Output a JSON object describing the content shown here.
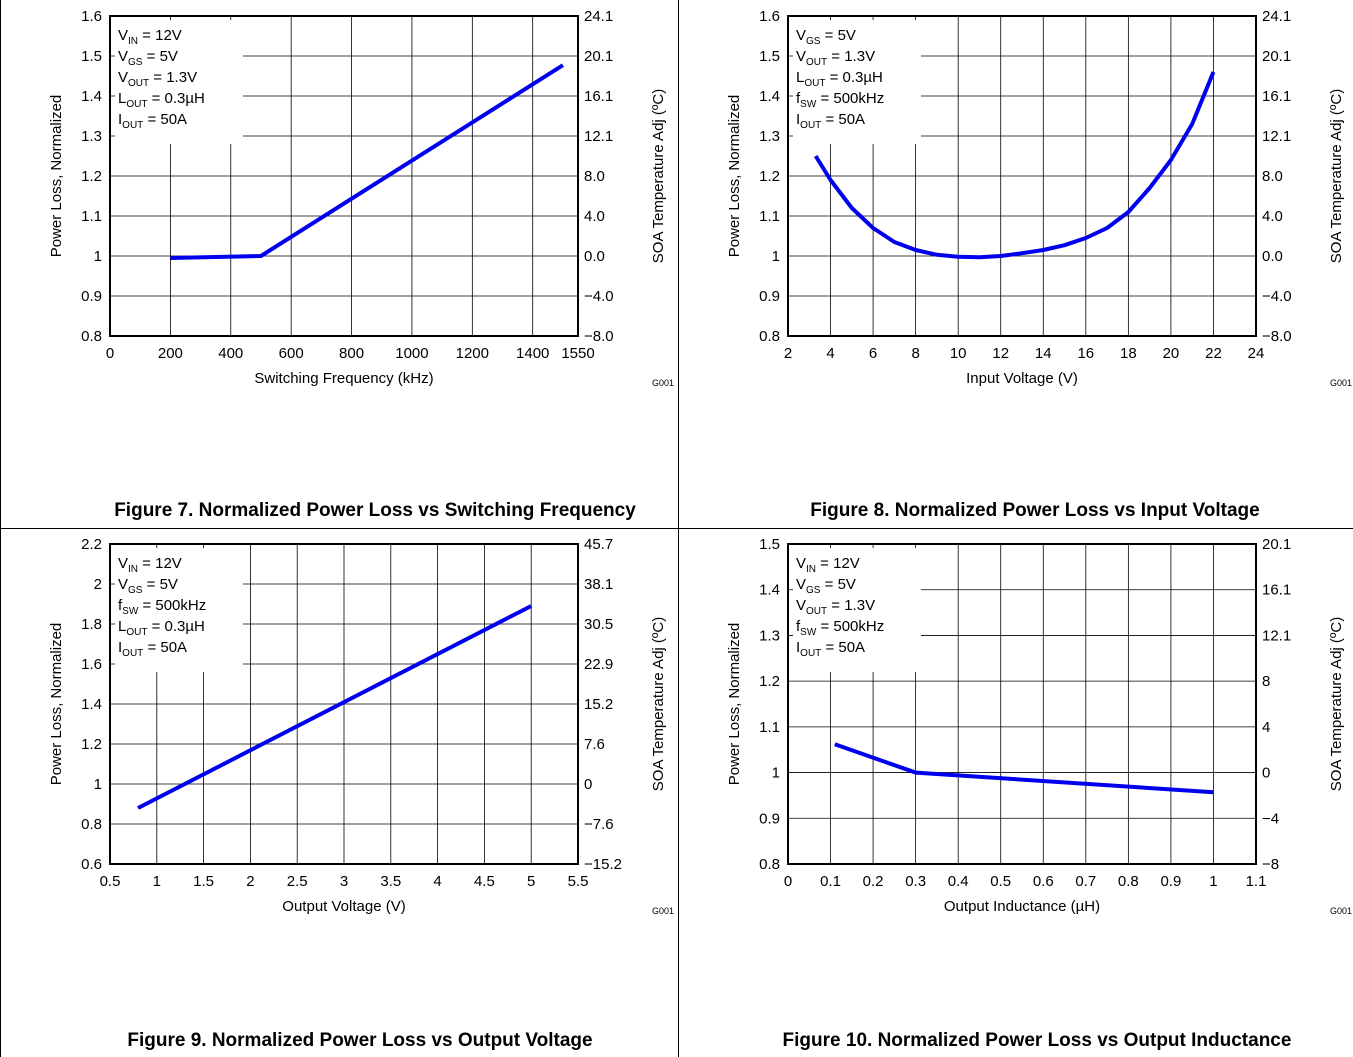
{
  "chart_data": [
    {
      "type": "line",
      "caption": "Figure 7. Normalized Power Loss vs Switching Frequency",
      "xlabel": "Switching Frequency (kHz)",
      "ylabel": "Power Loss, Normalized",
      "y2label": "SOA Temperature Adj (ºC)",
      "xticks": [
        "0",
        "200",
        "400",
        "600",
        "800",
        "1000",
        "1200",
        "1400",
        "1550"
      ],
      "xtick_values": [
        0,
        200,
        400,
        600,
        800,
        1000,
        1200,
        1400,
        1550
      ],
      "xlim": [
        0,
        1550
      ],
      "yticks": [
        "0.8",
        "0.9",
        "1",
        "1.1",
        "1.2",
        "1.3",
        "1.4",
        "1.5",
        "1.6"
      ],
      "ytick_values": [
        0.8,
        0.9,
        1.0,
        1.1,
        1.2,
        1.3,
        1.4,
        1.5,
        1.6
      ],
      "ylim": [
        0.8,
        1.6
      ],
      "y2ticks": [
        "−8.0",
        "−4.0",
        "0.0",
        "4.0",
        "8.0",
        "12.1",
        "16.1",
        "20.1",
        "24.1"
      ],
      "grid": true,
      "code": "G001",
      "conditions": [
        {
          "main": "V",
          "sub": "IN",
          "rest": " = 12V"
        },
        {
          "main": "V",
          "sub": "GS",
          "rest": " = 5V"
        },
        {
          "main": "V",
          "sub": "OUT",
          "rest": " = 1.3V"
        },
        {
          "main": "L",
          "sub": "OUT",
          "rest": " = 0.3µH"
        },
        {
          "main": "I",
          "sub": "OUT",
          "rest": " = 50A"
        }
      ],
      "x": [
        200,
        500,
        1500
      ],
      "y": [
        0.995,
        1.0,
        1.477
      ],
      "line_color": "#0000ee"
    },
    {
      "type": "line",
      "caption": "Figure 8. Normalized Power Loss vs Input Voltage",
      "xlabel": "Input Voltage (V)",
      "ylabel": "Power Loss, Normalized",
      "y2label": "SOA Temperature Adj (ºC)",
      "xticks": [
        "2",
        "4",
        "6",
        "8",
        "10",
        "12",
        "14",
        "16",
        "18",
        "20",
        "22",
        "24"
      ],
      "xtick_values": [
        2,
        4,
        6,
        8,
        10,
        12,
        14,
        16,
        18,
        20,
        22,
        24
      ],
      "xlim": [
        2,
        24
      ],
      "yticks": [
        "0.8",
        "0.9",
        "1",
        "1.1",
        "1.2",
        "1.3",
        "1.4",
        "1.5",
        "1.6"
      ],
      "ytick_values": [
        0.8,
        0.9,
        1.0,
        1.1,
        1.2,
        1.3,
        1.4,
        1.5,
        1.6
      ],
      "ylim": [
        0.8,
        1.6
      ],
      "y2ticks": [
        "−8.0",
        "−4.0",
        "0.0",
        "4.0",
        "8.0",
        "12.1",
        "16.1",
        "20.1",
        "24.1"
      ],
      "grid": true,
      "code": "G001",
      "conditions": [
        {
          "main": "V",
          "sub": "GS",
          "rest": " = 5V"
        },
        {
          "main": "V",
          "sub": "OUT",
          "rest": " = 1.3V"
        },
        {
          "main": "L",
          "sub": "OUT",
          "rest": " = 0.3µH"
        },
        {
          "main": "f",
          "sub": "SW",
          "rest": " = 500kHz"
        },
        {
          "main": "I",
          "sub": "OUT",
          "rest": " = 50A"
        }
      ],
      "x": [
        3.3,
        4,
        5,
        6,
        7,
        8,
        9,
        10,
        11,
        12,
        13,
        14,
        15,
        16,
        17,
        18,
        19,
        20,
        21,
        22
      ],
      "y": [
        1.25,
        1.19,
        1.12,
        1.07,
        1.035,
        1.015,
        1.003,
        0.998,
        0.997,
        1.0,
        1.007,
        1.015,
        1.027,
        1.045,
        1.07,
        1.11,
        1.17,
        1.24,
        1.33,
        1.46
      ],
      "line_color": "#0000ee"
    },
    {
      "type": "line",
      "caption": "Figure 9. Normalized Power Loss vs Output Voltage",
      "xlabel": "Output Voltage (V)",
      "ylabel": "Power Loss, Normalized",
      "y2label": "SOA Temperature Adj (ºC)",
      "xticks": [
        "0.5",
        "1",
        "1.5",
        "2",
        "2.5",
        "3",
        "3.5",
        "4",
        "4.5",
        "5",
        "5.5"
      ],
      "xtick_values": [
        0.5,
        1,
        1.5,
        2,
        2.5,
        3,
        3.5,
        4,
        4.5,
        5,
        5.5
      ],
      "xlim": [
        0.5,
        5.5
      ],
      "yticks": [
        "0.6",
        "0.8",
        "1",
        "1.2",
        "1.4",
        "1.6",
        "1.8",
        "2",
        "2.2"
      ],
      "ytick_values": [
        0.6,
        0.8,
        1.0,
        1.2,
        1.4,
        1.6,
        1.8,
        2.0,
        2.2
      ],
      "ylim": [
        0.6,
        2.2
      ],
      "y2ticks": [
        "−15.2",
        "−7.6",
        "0",
        "7.6",
        "15.2",
        "22.9",
        "30.5",
        "38.1",
        "45.7"
      ],
      "grid": true,
      "code": "G001",
      "conditions": [
        {
          "main": "V",
          "sub": "IN",
          "rest": " = 12V"
        },
        {
          "main": "V",
          "sub": "GS",
          "rest": " = 5V"
        },
        {
          "main": "f",
          "sub": "SW",
          "rest": " = 500kHz"
        },
        {
          "main": "L",
          "sub": "OUT",
          "rest": " = 0.3µH"
        },
        {
          "main": "I",
          "sub": "OUT",
          "rest": " = 50A"
        }
      ],
      "x": [
        0.8,
        5.0
      ],
      "y": [
        0.88,
        1.89
      ],
      "line_color": "#0000ee"
    },
    {
      "type": "line",
      "caption": "Figure 10. Normalized Power Loss vs Output Inductance",
      "xlabel": "Output Inductance (µH)",
      "ylabel": "Power Loss, Normalized",
      "y2label": "SOA Temperature Adj (ºC)",
      "xticks": [
        "0",
        "0.1",
        "0.2",
        "0.3",
        "0.4",
        "0.5",
        "0.6",
        "0.7",
        "0.8",
        "0.9",
        "1",
        "1.1"
      ],
      "xtick_values": [
        0,
        0.1,
        0.2,
        0.3,
        0.4,
        0.5,
        0.6,
        0.7,
        0.8,
        0.9,
        1.0,
        1.1
      ],
      "xlim": [
        0,
        1.1
      ],
      "yticks": [
        "0.8",
        "0.9",
        "1",
        "1.1",
        "1.2",
        "1.3",
        "1.4",
        "1.5"
      ],
      "ytick_values": [
        0.8,
        0.9,
        1.0,
        1.1,
        1.2,
        1.3,
        1.4,
        1.5
      ],
      "ylim": [
        0.8,
        1.5
      ],
      "y2ticks": [
        "−8",
        "−4",
        "0",
        "4",
        "8",
        "12.1",
        "16.1",
        "20.1"
      ],
      "grid": true,
      "code": "G001",
      "conditions": [
        {
          "main": "V",
          "sub": "IN",
          "rest": " = 12V"
        },
        {
          "main": "V",
          "sub": "GS",
          "rest": " = 5V"
        },
        {
          "main": "V",
          "sub": "OUT",
          "rest": " = 1.3V"
        },
        {
          "main": "f",
          "sub": "SW",
          "rest": " = 500kHz"
        },
        {
          "main": "I",
          "sub": "OUT",
          "rest": " = 50A"
        }
      ],
      "x": [
        0.11,
        0.3,
        1.0
      ],
      "y": [
        1.062,
        1.0,
        0.957
      ],
      "line_color": "#0000ee"
    }
  ]
}
